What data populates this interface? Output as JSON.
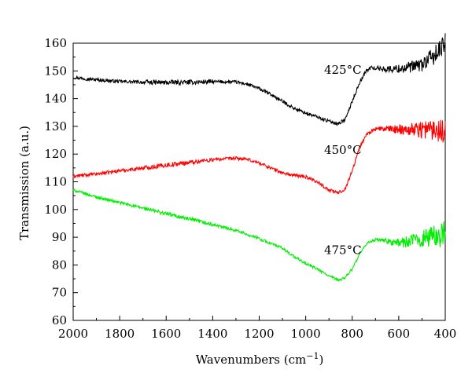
{
  "chart_data": {
    "type": "line",
    "xlabel": "Wavenumbers (cm",
    "xlabel_sup": "−1",
    "xlabel_close": ")",
    "ylabel": "Transmission (a.u.)",
    "xlim": [
      2000,
      400
    ],
    "ylim": [
      60,
      160
    ],
    "x_reversed": true,
    "grid": false,
    "x_ticks": [
      2000,
      1800,
      1600,
      1400,
      1200,
      1000,
      800,
      600,
      400
    ],
    "y_ticks": [
      60,
      70,
      80,
      90,
      100,
      110,
      120,
      130,
      140,
      150,
      160
    ],
    "series": [
      {
        "name": "425°C",
        "color": "#000000",
        "label_at": [
          760,
          149
        ],
        "noise": {
          "start": 740,
          "amp": [
            0.6,
            4.0
          ]
        },
        "points": [
          [
            2000,
            147.7
          ],
          [
            1900,
            146.8
          ],
          [
            1800,
            146.2
          ],
          [
            1700,
            145.9
          ],
          [
            1600,
            145.8
          ],
          [
            1500,
            145.9
          ],
          [
            1400,
            146.1
          ],
          [
            1300,
            146.0
          ],
          [
            1250,
            145.2
          ],
          [
            1200,
            143.6
          ],
          [
            1150,
            141.5
          ],
          [
            1100,
            139.0
          ],
          [
            1050,
            136.5
          ],
          [
            1000,
            134.8
          ],
          [
            950,
            133.4
          ],
          [
            900,
            131.8
          ],
          [
            860,
            131.0
          ],
          [
            830,
            132.5
          ],
          [
            800,
            139.0
          ],
          [
            770,
            145.5
          ],
          [
            740,
            150.0
          ],
          [
            720,
            151.2
          ],
          [
            700,
            151.0
          ],
          [
            650,
            150.6
          ],
          [
            600,
            150.8
          ],
          [
            550,
            151.3
          ],
          [
            500,
            152.3
          ],
          [
            470,
            154.0
          ],
          [
            440,
            156.0
          ],
          [
            415,
            158.0
          ],
          [
            400,
            160.0
          ]
        ]
      },
      {
        "name": "450°C",
        "color": "#ff0000",
        "label_at": [
          760,
          120
        ],
        "noise": {
          "start": 720,
          "amp": [
            0.6,
            5.0
          ]
        },
        "points": [
          [
            2000,
            112.0
          ],
          [
            1900,
            112.8
          ],
          [
            1800,
            114.0
          ],
          [
            1700,
            115.0
          ],
          [
            1600,
            116.0
          ],
          [
            1500,
            117.0
          ],
          [
            1400,
            118.0
          ],
          [
            1300,
            118.5
          ],
          [
            1250,
            118.0
          ],
          [
            1200,
            116.8
          ],
          [
            1150,
            115.0
          ],
          [
            1100,
            113.2
          ],
          [
            1050,
            112.3
          ],
          [
            1000,
            111.8
          ],
          [
            950,
            110.0
          ],
          [
            900,
            107.0
          ],
          [
            860,
            106.0
          ],
          [
            830,
            107.5
          ],
          [
            800,
            114.0
          ],
          [
            770,
            122.0
          ],
          [
            740,
            127.0
          ],
          [
            710,
            128.8
          ],
          [
            680,
            129.2
          ],
          [
            650,
            129.0
          ],
          [
            600,
            129.0
          ],
          [
            550,
            129.0
          ],
          [
            500,
            129.0
          ],
          [
            450,
            129.0
          ],
          [
            400,
            129.0
          ]
        ]
      },
      {
        "name": "475°C",
        "color": "#00ee00",
        "label_at": [
          760,
          84
        ],
        "noise": {
          "start": 720,
          "amp": [
            0.5,
            5.0
          ]
        },
        "points": [
          [
            2000,
            107.0
          ],
          [
            1900,
            104.5
          ],
          [
            1800,
            102.5
          ],
          [
            1700,
            100.5
          ],
          [
            1600,
            98.5
          ],
          [
            1500,
            96.5
          ],
          [
            1400,
            94.5
          ],
          [
            1300,
            92.5
          ],
          [
            1200,
            89.5
          ],
          [
            1100,
            86.0
          ],
          [
            1050,
            83.0
          ],
          [
            1000,
            80.5
          ],
          [
            950,
            78.5
          ],
          [
            900,
            76.0
          ],
          [
            860,
            74.5
          ],
          [
            830,
            75.5
          ],
          [
            800,
            78.5
          ],
          [
            770,
            83.5
          ],
          [
            740,
            87.5
          ],
          [
            710,
            89.0
          ],
          [
            680,
            89.0
          ],
          [
            650,
            88.5
          ],
          [
            600,
            88.0
          ],
          [
            550,
            88.5
          ],
          [
            500,
            89.5
          ],
          [
            450,
            90.5
          ],
          [
            400,
            91.0
          ]
        ]
      }
    ]
  }
}
